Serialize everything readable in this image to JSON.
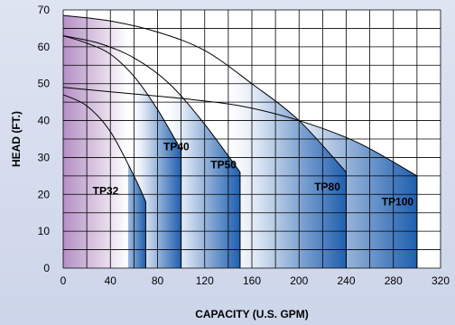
{
  "chart_data": {
    "type": "area",
    "title": "",
    "xlabel": "CAPACITY (U.S. GPM)",
    "ylabel": "HEAD (FT.)",
    "xlim": [
      0,
      320
    ],
    "ylim": [
      0,
      70
    ],
    "x_ticks": [
      0,
      40,
      80,
      120,
      160,
      200,
      240,
      280,
      320
    ],
    "y_ticks": [
      0,
      10,
      20,
      30,
      40,
      50,
      60,
      70
    ],
    "grid": true,
    "colors": {
      "fill_dark": "#1f5fae",
      "fill_light": "#ffffff",
      "fill_left": "#b58fc4",
      "line": "#000000"
    },
    "series": [
      {
        "name": "TP32",
        "x": [
          0,
          20,
          40,
          60,
          70,
          70
        ],
        "y": [
          47,
          44,
          37,
          25,
          18,
          0
        ],
        "label_pos": [
          25,
          20
        ]
      },
      {
        "name": "TP40",
        "x": [
          0,
          20,
          40,
          60,
          80,
          100,
          100
        ],
        "y": [
          63,
          61,
          58,
          52,
          43,
          32,
          0
        ],
        "label_pos": [
          85,
          32
        ]
      },
      {
        "name": "TP50",
        "x": [
          0,
          30,
          60,
          90,
          120,
          150,
          150
        ],
        "y": [
          63,
          61,
          57,
          50,
          39,
          26,
          0
        ],
        "label_pos": [
          125,
          27
        ]
      },
      {
        "name": "TP80",
        "x": [
          0,
          40,
          80,
          120,
          160,
          200,
          240,
          240
        ],
        "y": [
          68.5,
          67,
          64,
          59,
          50,
          40,
          26,
          0
        ],
        "label_pos": [
          213,
          21
        ]
      },
      {
        "name": "TP100",
        "x": [
          0,
          50,
          100,
          150,
          200,
          250,
          300,
          300
        ],
        "y": [
          49,
          47.5,
          46,
          44,
          40,
          34,
          25,
          0
        ],
        "label_pos": [
          270,
          17
        ]
      }
    ]
  }
}
